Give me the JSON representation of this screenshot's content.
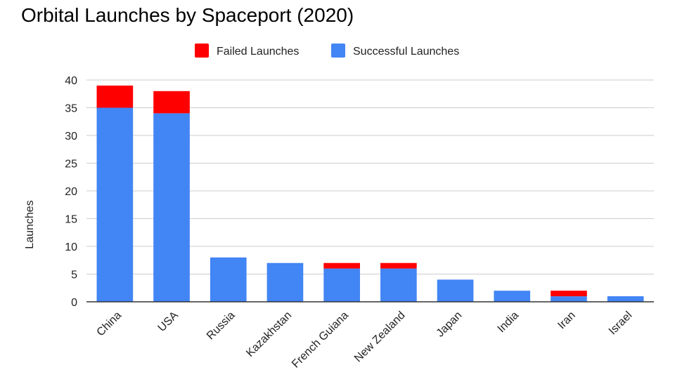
{
  "chart_data": {
    "type": "bar",
    "stacked": true,
    "title": "Orbital Launches by Spaceport (2020)",
    "xlabel": "",
    "ylabel": "Launches",
    "ylim": [
      0,
      40
    ],
    "yticks": [
      0,
      5,
      10,
      15,
      20,
      25,
      30,
      35,
      40
    ],
    "grid": true,
    "legend_position": "top",
    "categories": [
      "China",
      "USA",
      "Russia",
      "Kazakhstan",
      "French Guiana",
      "New Zealand",
      "Japan",
      "India",
      "Iran",
      "Israel"
    ],
    "series": [
      {
        "name": "Successful Launches",
        "color": "#4285f4",
        "values": [
          35,
          34,
          8,
          7,
          6,
          6,
          4,
          2,
          1,
          1
        ]
      },
      {
        "name": "Failed Launches",
        "color": "#ff0000",
        "values": [
          4,
          4,
          0,
          0,
          1,
          1,
          0,
          0,
          1,
          0
        ]
      }
    ],
    "legend_order": [
      "Failed Launches",
      "Successful Launches"
    ]
  }
}
